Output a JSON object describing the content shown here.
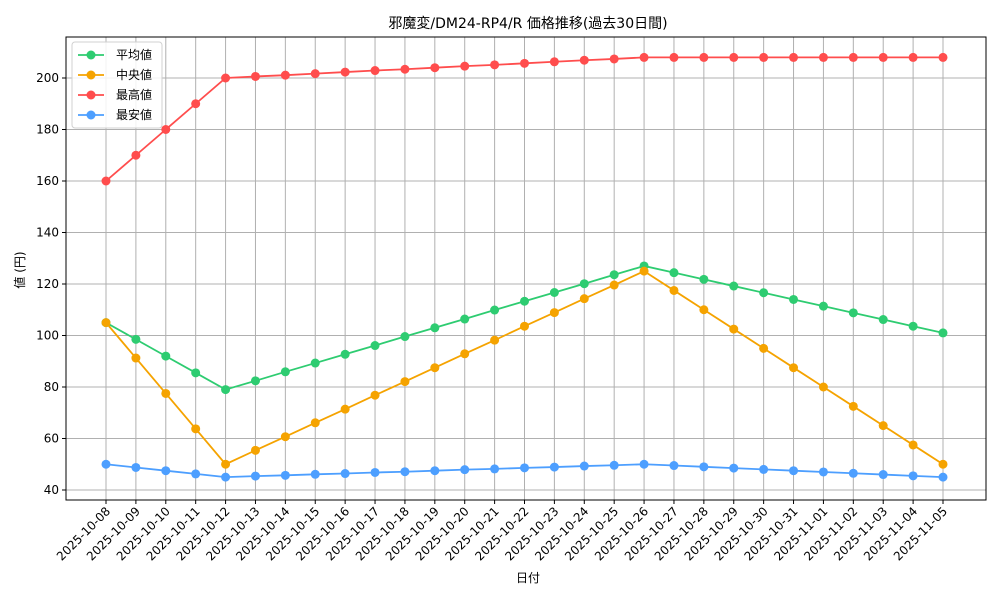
{
  "chart_data": {
    "type": "line",
    "title": "邪魔変/DM24-RP4/R 価格推移(過去30日間)",
    "xlabel": "日付",
    "ylabel": "値 (円)",
    "ylim": [
      36,
      216
    ],
    "yticks": [
      40,
      60,
      80,
      100,
      120,
      140,
      160,
      180,
      200
    ],
    "grid": true,
    "legend_position": "upper left",
    "x": [
      "2025-10-08",
      "2025-10-09",
      "2025-10-10",
      "2025-10-11",
      "2025-10-12",
      "2025-10-13",
      "2025-10-14",
      "2025-10-15",
      "2025-10-16",
      "2025-10-17",
      "2025-10-18",
      "2025-10-19",
      "2025-10-20",
      "2025-10-21",
      "2025-10-22",
      "2025-10-23",
      "2025-10-24",
      "2025-10-25",
      "2025-10-26",
      "2025-10-27",
      "2025-10-28",
      "2025-10-29",
      "2025-10-30",
      "2025-10-31",
      "2025-11-01",
      "2025-11-02",
      "2025-11-03",
      "2025-11-04",
      "2025-11-05"
    ],
    "series": [
      {
        "name": "平均値",
        "color": "#2ecc71",
        "values": [
          105,
          98.5,
          92,
          85.5,
          79,
          82.4,
          85.9,
          89.3,
          92.7,
          96.1,
          99.6,
          103,
          106.4,
          109.9,
          113.3,
          116.7,
          120.1,
          123.6,
          127,
          124.4,
          121.8,
          119.2,
          116.6,
          114,
          111.4,
          108.8,
          106.2,
          103.6,
          101
        ]
      },
      {
        "name": "中央値",
        "color": "#f5a300",
        "values": [
          105,
          91.25,
          77.5,
          63.75,
          50,
          55.4,
          60.7,
          66.1,
          71.4,
          76.8,
          82.1,
          87.5,
          92.9,
          98.2,
          103.6,
          108.9,
          114.3,
          119.6,
          125,
          117.5,
          110,
          102.5,
          95,
          87.5,
          80,
          72.5,
          65,
          57.5,
          50
        ]
      },
      {
        "name": "最高値",
        "color": "#ff4d4d",
        "values": [
          160,
          170,
          180,
          190,
          200,
          200.6,
          201.1,
          201.7,
          202.3,
          202.9,
          203.4,
          204,
          204.6,
          205.1,
          205.7,
          206.3,
          206.9,
          207.4,
          208,
          208,
          208,
          208,
          208,
          208,
          208,
          208,
          208,
          208,
          208
        ]
      },
      {
        "name": "最安値",
        "color": "#4d9fff",
        "values": [
          50,
          48.75,
          47.5,
          46.25,
          45,
          45.4,
          45.7,
          46.1,
          46.4,
          46.8,
          47.1,
          47.5,
          47.9,
          48.2,
          48.6,
          48.9,
          49.3,
          49.6,
          50,
          49.5,
          49,
          48.5,
          48,
          47.5,
          47,
          46.5,
          46,
          45.5,
          45
        ]
      }
    ]
  }
}
